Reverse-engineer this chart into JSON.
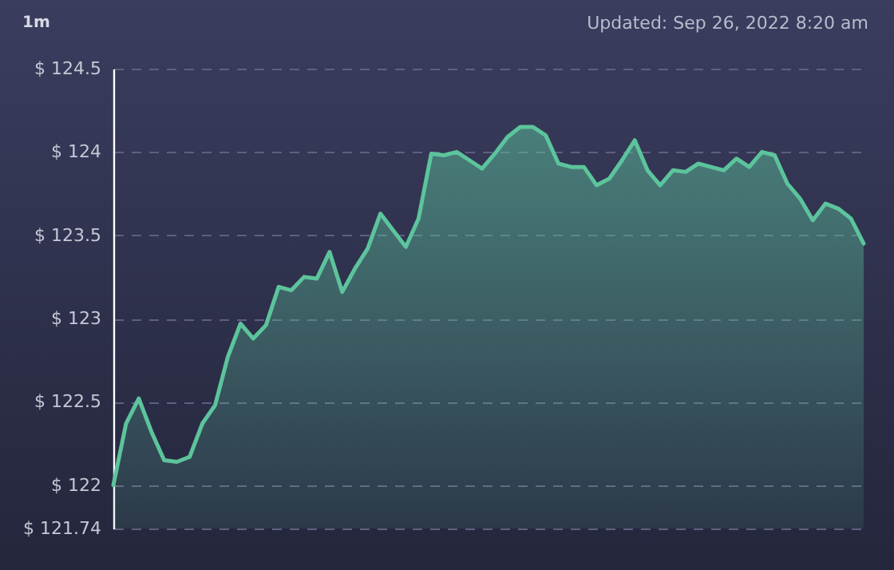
{
  "chart_data": {
    "type": "area",
    "title": "1m",
    "subtitle": "Updated: Sep 26, 2022 8:20 am",
    "categories": [
      null,
      null,
      null,
      null,
      null,
      null,
      null,
      null,
      null,
      null,
      null,
      null,
      null,
      null,
      null,
      null,
      null,
      null,
      null,
      null,
      null,
      null,
      null,
      null,
      null,
      null,
      null,
      null,
      null,
      null,
      null,
      null,
      null,
      null,
      null,
      null,
      null,
      null,
      null,
      null,
      null,
      null,
      null,
      null,
      null,
      null,
      null,
      null,
      null,
      null,
      null,
      null,
      null,
      null,
      null,
      null,
      null,
      null,
      null,
      null
    ],
    "series": [
      {
        "color": "#5cc49c",
        "values": [
          122.0,
          122.37,
          122.52,
          122.32,
          122.15,
          122.14,
          122.17,
          122.37,
          122.48,
          122.77,
          122.97,
          122.88,
          122.96,
          123.19,
          123.17,
          123.25,
          123.24,
          123.4,
          123.16,
          123.3,
          123.42,
          123.63,
          123.53,
          123.43,
          123.6,
          123.99,
          123.98,
          124.0,
          123.95,
          123.9,
          123.99,
          124.09,
          124.15,
          124.15,
          124.1,
          123.93,
          123.91,
          123.91,
          123.8,
          123.84,
          123.95,
          124.07,
          123.89,
          123.8,
          123.89,
          123.88,
          123.93,
          123.91,
          123.89,
          123.96,
          123.91,
          124.0,
          123.98,
          123.81,
          123.72,
          123.59,
          123.69,
          123.66,
          123.6,
          123.45
        ]
      }
    ],
    "ylim": [
      121.74,
      124.5
    ],
    "yticks": [
      {
        "value": 121.74,
        "label": "$ 121.74"
      },
      {
        "value": 122,
        "label": "$ 122"
      },
      {
        "value": 122.5,
        "label": "$ 122.5"
      },
      {
        "value": 123,
        "label": "$ 123"
      },
      {
        "value": 123.5,
        "label": "$ 123.5"
      },
      {
        "value": 124,
        "label": "$ 124"
      },
      {
        "value": 124.5,
        "label": "$ 124.5"
      }
    ],
    "grid": "y",
    "line_style": "solid",
    "tick_labels": "y"
  }
}
